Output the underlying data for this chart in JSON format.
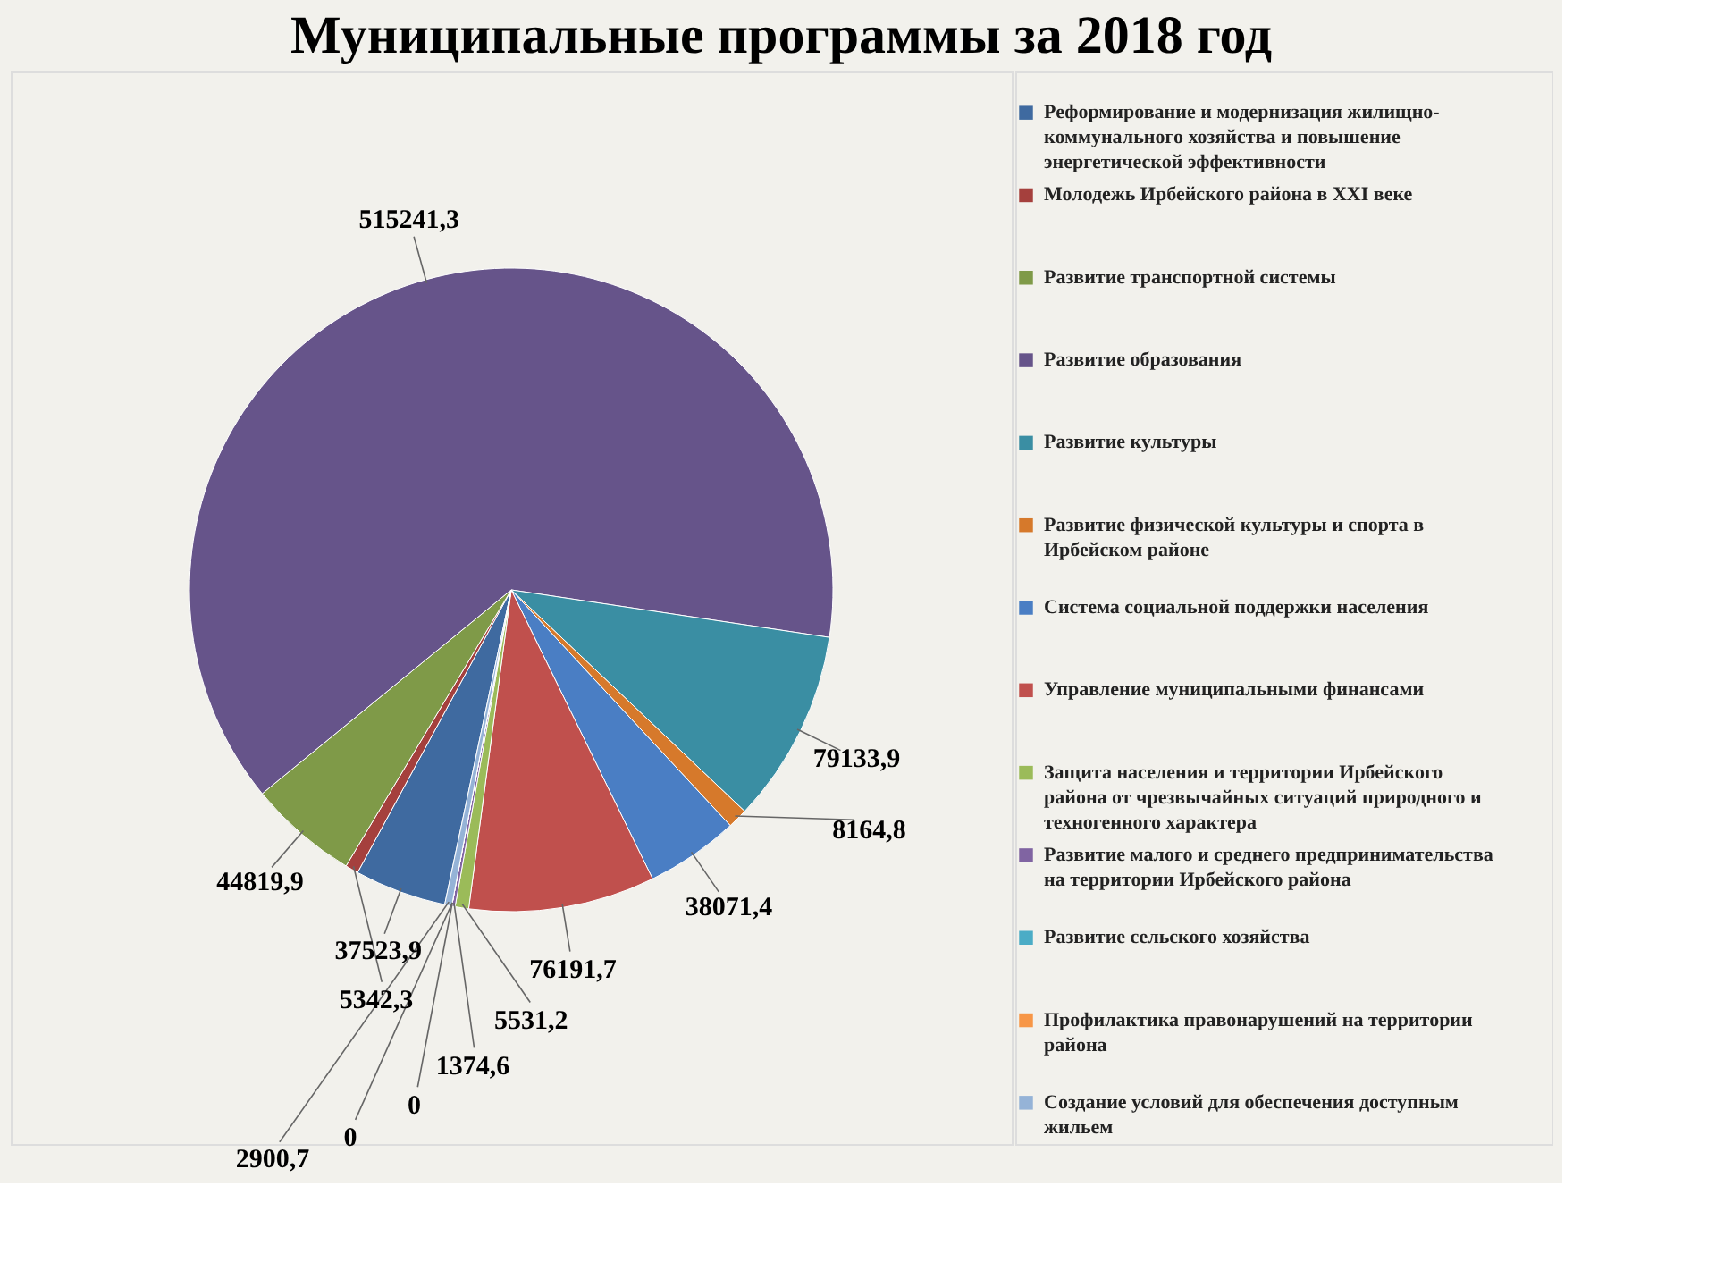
{
  "chart_data": {
    "type": "pie",
    "title": "Муниципальные программы за 2018 год",
    "categories": [
      "Реформирование и модернизация жилищно-коммунального хозяйства и  повышение энергетической эффективности",
      "Молодежь Ирбейского района в XXI веке",
      "Развитие транспортной системы",
      "Развитие образования",
      "Развитие культуры",
      "Развитие физической  культуры и спорта в Ирбейском районе",
      "Система социальной поддержки населения",
      "Управление муниципальными финансами",
      "Защита населения и территории Ирбейского района от чрезвычайных ситуаций природного и техногенного характера",
      "Развитие малого и среднего предпринимательства на территории Ирбейского района",
      "Развитие сельского хозяйства",
      "Профилактика правонарушений на территории района",
      "Создание условий для обеспечения доступным жильем"
    ],
    "values": [
      37523.9,
      5342.3,
      44819.9,
      515241.3,
      79133.9,
      8164.8,
      38071.4,
      76191.7,
      5531.2,
      1374.6,
      0,
      0,
      2900.7
    ],
    "value_labels": [
      "37523,9",
      "5342,3",
      "44819,9",
      "515241,3",
      "79133,9",
      "8164,8",
      "38071,4",
      "76191,7",
      "5531,2",
      "1374,6",
      "0",
      "0",
      "2900,7"
    ],
    "colors": [
      "#3f6aa0",
      "#a5403d",
      "#7f9a48",
      "#66548a",
      "#3a8ea3",
      "#d6792b",
      "#4a7ec4",
      "#c0504d",
      "#9bbb59",
      "#8064a2",
      "#4bacc6",
      "#f79646",
      "#95b3d7"
    ],
    "legend": "right"
  }
}
